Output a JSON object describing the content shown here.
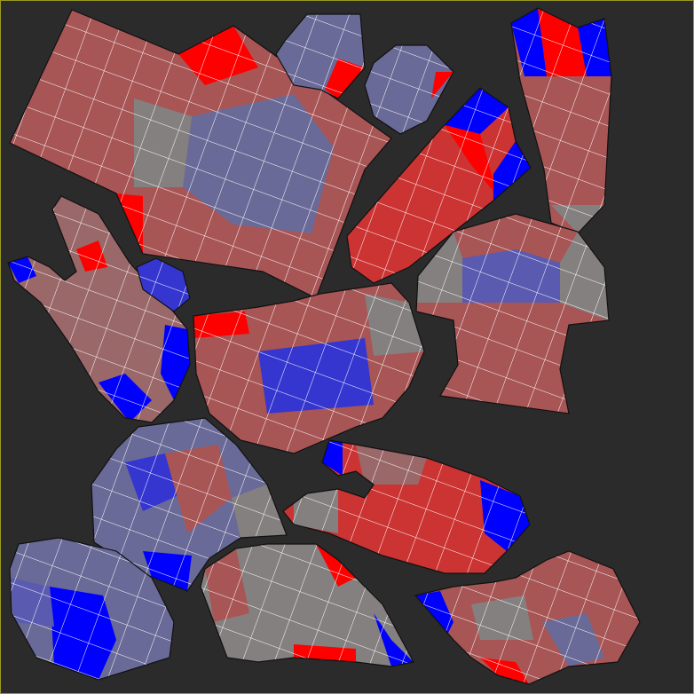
{
  "view": {
    "background": "#2b2b2b",
    "frame_color": "#9a9a20",
    "edge_color": "#ffffff",
    "outline_color": "#111111"
  },
  "palette": {
    "red": "#ff0000",
    "dark_red": "#cc3333",
    "muted_red": "#a85555",
    "rose": "#9a6868",
    "grey": "#858080",
    "slate": "#6a6a98",
    "blue_grey": "#5a5ab0",
    "blue": "#0000ff",
    "deep_blue": "#3535d0"
  }
}
